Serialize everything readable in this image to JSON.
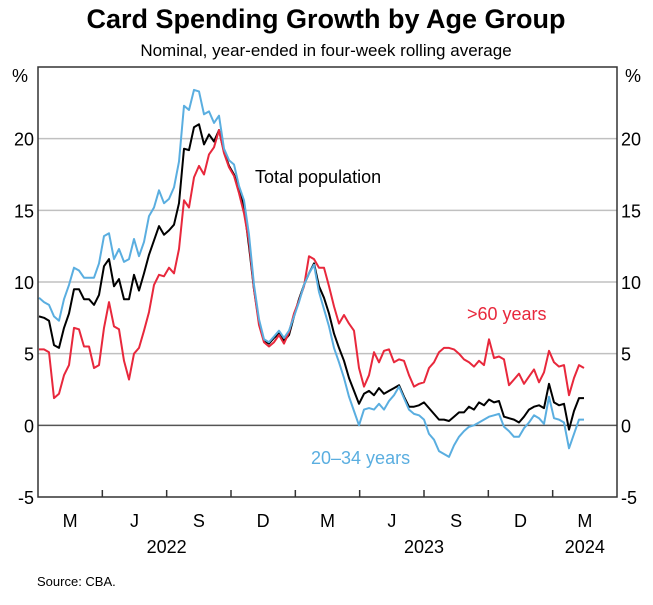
{
  "chart_data": {
    "type": "line",
    "title": "Card Spending Growth by Age Group",
    "subtitle": "Nominal, year-ended in four-week rolling average",
    "ylabel_left": "%",
    "ylabel_right": "%",
    "ylim": [
      -5,
      25
    ],
    "yticks": [
      -5,
      0,
      5,
      10,
      15,
      20
    ],
    "ytick_labels": [
      "-5",
      "0",
      "5",
      "10",
      "15",
      "20"
    ],
    "grid": true,
    "x_period_labels": [
      "M",
      "J",
      "S",
      "D",
      "M",
      "J",
      "S",
      "D",
      "M"
    ],
    "x_year_labels": [
      {
        "label": "2022",
        "period_index": 1.5
      },
      {
        "label": "2023",
        "period_index": 5.5
      },
      {
        "label": "2024",
        "period_index": 8
      }
    ],
    "x_periods": 9,
    "x_unit": "weekly observations, quarters Feb-2022 to Apr-2024",
    "series": [
      {
        "name": "Total population",
        "color": "#000000",
        "values": [
          7.6,
          7.5,
          7.3,
          5.6,
          5.4,
          6.8,
          7.8,
          9.5,
          9.5,
          8.8,
          8.8,
          8.4,
          9.1,
          11.1,
          11.6,
          9.7,
          10.2,
          8.8,
          8.8,
          10.5,
          9.4,
          10.6,
          11.9,
          12.9,
          13.9,
          13.3,
          13.6,
          14.0,
          15.5,
          19.3,
          19.2,
          20.8,
          21.0,
          19.6,
          20.3,
          19.8,
          20.6,
          19.1,
          18.1,
          17.5,
          16.5,
          15.2,
          12.5,
          9.5,
          7.2,
          5.9,
          5.7,
          6.1,
          6.4,
          5.9,
          6.3,
          7.6,
          8.8,
          9.8,
          10.6,
          11.3,
          9.7,
          8.9,
          7.8,
          6.4,
          5.4,
          4.5,
          3.3,
          2.4,
          1.5,
          2.2,
          2.4,
          2.1,
          2.6,
          2.2,
          2.4,
          2.6,
          2.8,
          2.0,
          1.3,
          1.3,
          1.4,
          1.6,
          1.2,
          0.8,
          0.4,
          0.4,
          0.3,
          0.6,
          0.9,
          0.9,
          1.3,
          1.1,
          1.6,
          1.4,
          1.8,
          1.6,
          1.7,
          0.6,
          0.5,
          0.4,
          0.2,
          0.6,
          1.1,
          1.3,
          1.4,
          1.2,
          2.9,
          1.6,
          1.4,
          1.5,
          -0.3,
          1.0,
          1.9,
          1.9
        ]
      },
      {
        "name": ">60 years",
        "color": "#e8283c",
        "values": [
          5.3,
          5.3,
          5.1,
          1.9,
          2.2,
          3.5,
          4.2,
          6.8,
          6.7,
          5.5,
          5.5,
          4.0,
          4.2,
          6.8,
          8.6,
          6.9,
          6.7,
          4.5,
          3.2,
          5.0,
          5.4,
          6.6,
          7.9,
          9.8,
          10.5,
          10.4,
          11.0,
          10.6,
          12.3,
          15.7,
          15.2,
          17.3,
          18.1,
          17.5,
          18.9,
          19.4,
          20.6,
          19.0,
          18.0,
          17.4,
          16.2,
          14.8,
          12.8,
          9.5,
          7.0,
          5.8,
          5.5,
          5.8,
          6.3,
          5.7,
          6.5,
          7.8,
          8.7,
          9.7,
          11.8,
          11.6,
          11.0,
          11.0,
          9.7,
          8.3,
          7.1,
          7.7,
          7.1,
          6.6,
          4.0,
          2.7,
          3.5,
          5.1,
          4.4,
          5.2,
          5.3,
          4.4,
          4.6,
          4.5,
          3.5,
          2.7,
          2.9,
          3.0,
          4.0,
          4.4,
          5.1,
          5.4,
          5.4,
          5.3,
          5.0,
          4.6,
          4.4,
          4.1,
          4.5,
          4.2,
          6.0,
          4.7,
          4.8,
          4.6,
          2.8,
          3.2,
          3.6,
          2.9,
          3.4,
          3.9,
          3.0,
          3.7,
          5.2,
          4.4,
          4.1,
          4.2,
          2.1,
          3.3,
          4.2,
          4.0
        ]
      },
      {
        "name": "20–34 years",
        "color": "#5aaee0",
        "values": [
          8.9,
          8.6,
          8.4,
          7.6,
          7.3,
          8.8,
          9.8,
          11.0,
          10.8,
          10.3,
          10.3,
          10.3,
          11.3,
          13.2,
          13.4,
          11.6,
          12.3,
          11.4,
          11.6,
          13.0,
          11.8,
          12.8,
          14.6,
          15.2,
          16.4,
          15.5,
          15.8,
          16.6,
          18.4,
          22.3,
          22.0,
          23.4,
          23.3,
          21.7,
          21.9,
          21.1,
          21.6,
          19.3,
          18.5,
          18.2,
          16.7,
          15.7,
          13.3,
          9.8,
          7.4,
          6.0,
          5.8,
          6.2,
          6.6,
          6.1,
          6.6,
          7.6,
          8.6,
          9.8,
          10.6,
          11.2,
          9.3,
          8.1,
          6.9,
          5.4,
          4.4,
          3.3,
          2.0,
          1.0,
          0.0,
          1.1,
          1.2,
          1.1,
          1.5,
          1.1,
          1.7,
          2.1,
          2.7,
          1.9,
          1.1,
          0.8,
          0.7,
          0.4,
          -0.6,
          -1.0,
          -1.8,
          -2.0,
          -2.2,
          -1.4,
          -0.8,
          -0.4,
          -0.1,
          0.0,
          0.2,
          0.4,
          0.6,
          0.7,
          0.8,
          -0.1,
          -0.4,
          -0.8,
          -0.8,
          -0.2,
          0.2,
          0.7,
          0.5,
          0.1,
          2.0,
          0.5,
          0.4,
          0.2,
          -1.6,
          -0.6,
          0.4,
          0.4
        ]
      }
    ],
    "annotations": [
      {
        "text": "Total population",
        "series": "Total population",
        "color": "#000000"
      },
      {
        "text": ">60 years",
        "series": ">60 years",
        "color": "#e8283c"
      },
      {
        "text": "20–34 years",
        "series": "20–34 years",
        "color": "#5aaee0"
      }
    ],
    "source": "Source: CBA."
  }
}
